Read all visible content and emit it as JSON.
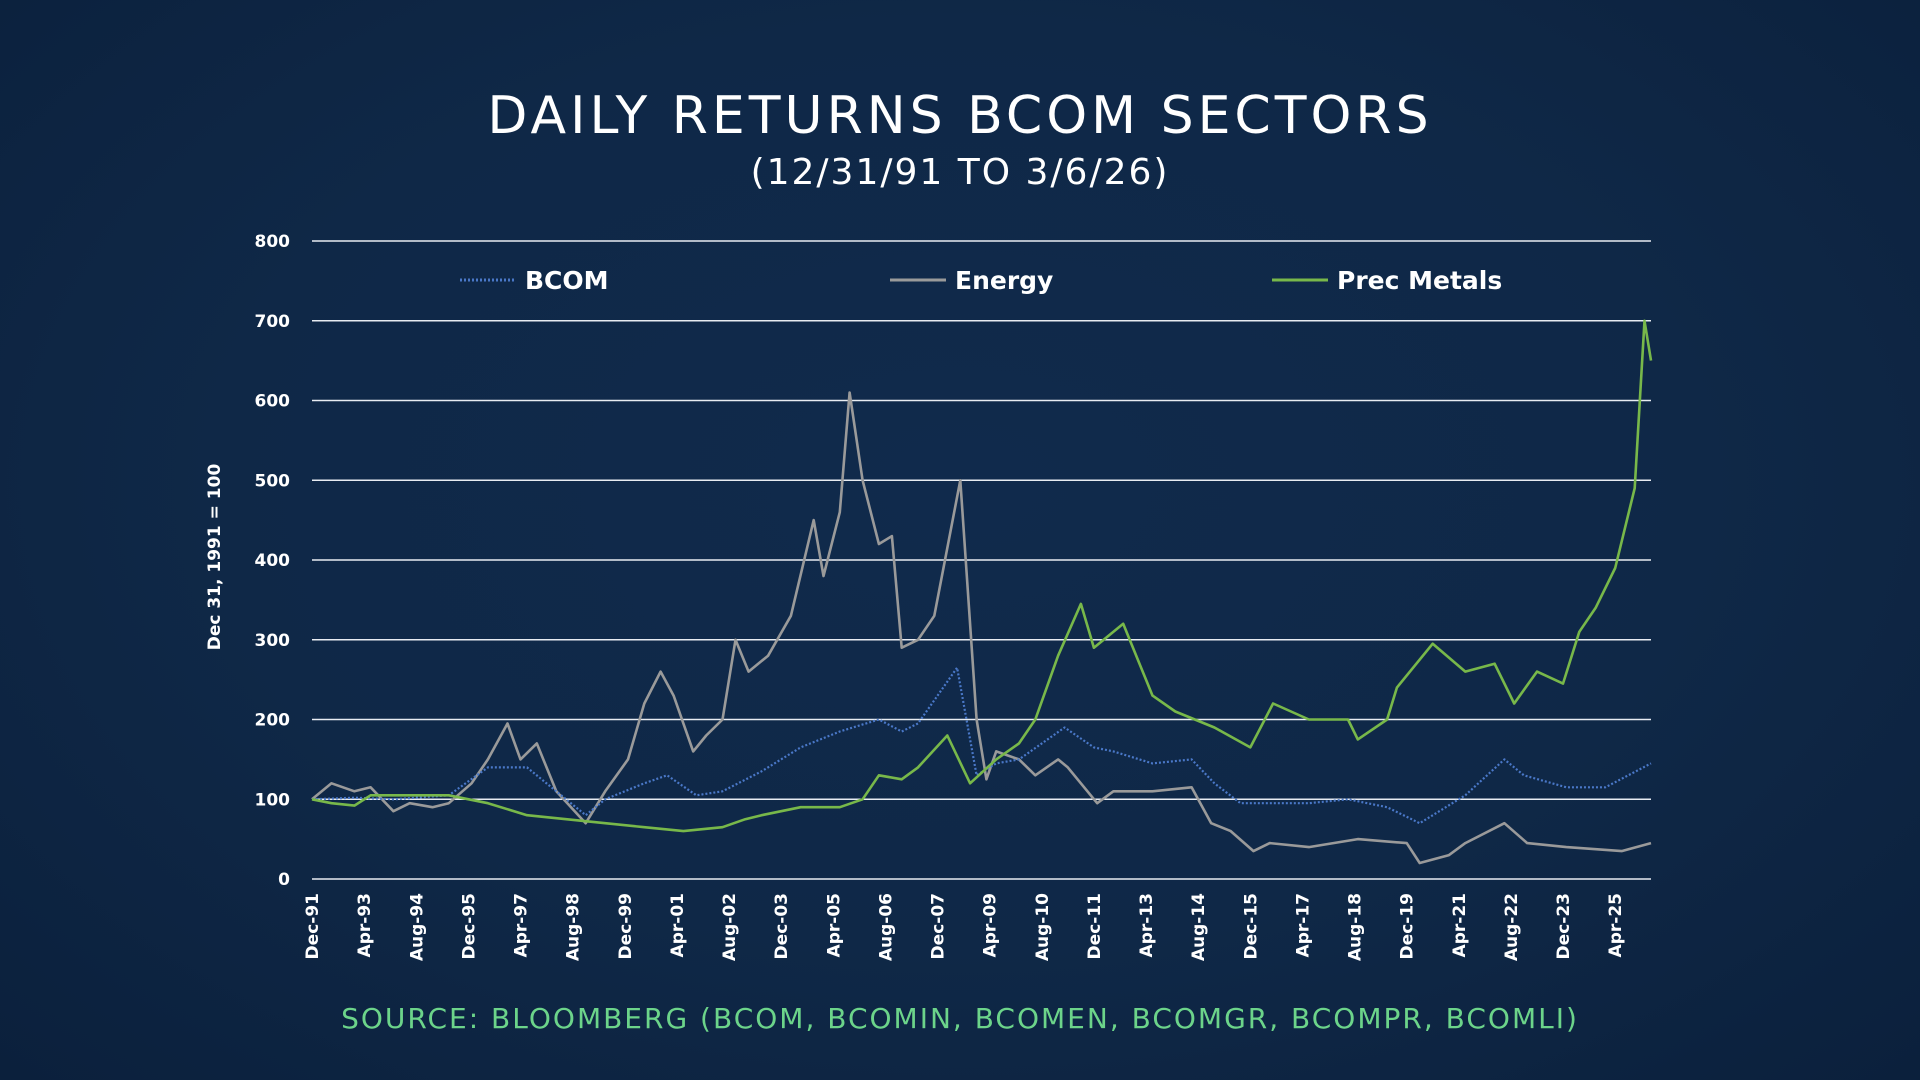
{
  "chart_data": {
    "type": "line",
    "title": "DAILY RETURNS BCOM SECTORS",
    "subtitle": "(12/31/91 TO 3/6/26)",
    "ylabel": "Dec 31, 1991 = 100",
    "xlabel": "",
    "ylim": [
      0,
      800
    ],
    "yticks": [
      0,
      100,
      200,
      300,
      400,
      500,
      600,
      700,
      800
    ],
    "xlim": [
      "1991-12",
      "2026-03"
    ],
    "xtick_labels": [
      "Dec-91",
      "Apr-93",
      "Aug-94",
      "Dec-95",
      "Apr-97",
      "Aug-98",
      "Dec-99",
      "Apr-01",
      "Aug-02",
      "Dec-03",
      "Apr-05",
      "Aug-06",
      "Dec-07",
      "Apr-09",
      "Aug-10",
      "Dec-11",
      "Apr-13",
      "Aug-14",
      "Dec-15",
      "Apr-17",
      "Aug-18",
      "Dec-19",
      "Apr-21",
      "Aug-22",
      "Dec-23",
      "Apr-25"
    ],
    "grid": "horizontal",
    "legend_position": "top",
    "series": [
      {
        "name": "BCOM",
        "color": "#4a78c8",
        "style": "dotted",
        "points": [
          [
            "1991-12",
            100
          ],
          [
            "1993-01",
            102
          ],
          [
            "1994-01",
            100
          ],
          [
            "1995-06",
            105
          ],
          [
            "1996-06",
            140
          ],
          [
            "1997-06",
            140
          ],
          [
            "1998-06",
            100
          ],
          [
            "1998-12",
            80
          ],
          [
            "1999-06",
            100
          ],
          [
            "2000-06",
            120
          ],
          [
            "2001-01",
            130
          ],
          [
            "2001-10",
            105
          ],
          [
            "2002-06",
            110
          ],
          [
            "2003-06",
            135
          ],
          [
            "2004-06",
            165
          ],
          [
            "2005-06",
            185
          ],
          [
            "2006-06",
            200
          ],
          [
            "2007-01",
            185
          ],
          [
            "2007-06",
            195
          ],
          [
            "2008-06",
            265
          ],
          [
            "2008-12",
            130
          ],
          [
            "2009-06",
            145
          ],
          [
            "2010-01",
            150
          ],
          [
            "2011-03",
            190
          ],
          [
            "2011-12",
            165
          ],
          [
            "2012-06",
            160
          ],
          [
            "2013-06",
            145
          ],
          [
            "2014-06",
            150
          ],
          [
            "2015-01",
            120
          ],
          [
            "2015-09",
            95
          ],
          [
            "2016-06",
            95
          ],
          [
            "2017-06",
            95
          ],
          [
            "2018-06",
            100
          ],
          [
            "2019-06",
            90
          ],
          [
            "2020-04",
            70
          ],
          [
            "2021-06",
            105
          ],
          [
            "2022-06",
            150
          ],
          [
            "2022-12",
            130
          ],
          [
            "2024-01",
            115
          ],
          [
            "2025-01",
            115
          ],
          [
            "2026-03",
            145
          ]
        ]
      },
      {
        "name": "Energy",
        "color": "#9a9a9a",
        "style": "solid",
        "points": [
          [
            "1991-12",
            100
          ],
          [
            "1992-06",
            120
          ],
          [
            "1993-01",
            110
          ],
          [
            "1993-06",
            115
          ],
          [
            "1994-01",
            85
          ],
          [
            "1994-06",
            95
          ],
          [
            "1995-01",
            90
          ],
          [
            "1995-06",
            95
          ],
          [
            "1996-01",
            120
          ],
          [
            "1996-06",
            150
          ],
          [
            "1996-12",
            195
          ],
          [
            "1997-04",
            150
          ],
          [
            "1997-09",
            170
          ],
          [
            "1998-03",
            110
          ],
          [
            "1998-12",
            70
          ],
          [
            "1999-06",
            110
          ],
          [
            "2000-01",
            150
          ],
          [
            "2000-06",
            220
          ],
          [
            "2000-11",
            260
          ],
          [
            "2001-03",
            230
          ],
          [
            "2001-09",
            160
          ],
          [
            "2002-01",
            180
          ],
          [
            "2002-06",
            200
          ],
          [
            "2002-10",
            300
          ],
          [
            "2003-02",
            260
          ],
          [
            "2003-08",
            280
          ],
          [
            "2004-03",
            330
          ],
          [
            "2004-10",
            450
          ],
          [
            "2005-01",
            380
          ],
          [
            "2005-06",
            460
          ],
          [
            "2005-09",
            610
          ],
          [
            "2006-01",
            500
          ],
          [
            "2006-06",
            420
          ],
          [
            "2006-10",
            430
          ],
          [
            "2007-01",
            290
          ],
          [
            "2007-06",
            300
          ],
          [
            "2007-11",
            330
          ],
          [
            "2008-07",
            500
          ],
          [
            "2008-12",
            200
          ],
          [
            "2009-03",
            125
          ],
          [
            "2009-06",
            160
          ],
          [
            "2010-01",
            150
          ],
          [
            "2010-06",
            130
          ],
          [
            "2011-01",
            150
          ],
          [
            "2011-04",
            140
          ],
          [
            "2012-01",
            95
          ],
          [
            "2012-06",
            110
          ],
          [
            "2013-06",
            110
          ],
          [
            "2014-06",
            115
          ],
          [
            "2014-12",
            70
          ],
          [
            "2015-06",
            60
          ],
          [
            "2016-01",
            35
          ],
          [
            "2016-06",
            45
          ],
          [
            "2017-06",
            40
          ],
          [
            "2018-09",
            50
          ],
          [
            "2019-12",
            45
          ],
          [
            "2020-04",
            20
          ],
          [
            "2021-01",
            30
          ],
          [
            "2021-06",
            45
          ],
          [
            "2022-06",
            70
          ],
          [
            "2023-01",
            45
          ],
          [
            "2024-01",
            40
          ],
          [
            "2025-06",
            35
          ],
          [
            "2026-03",
            45
          ]
        ]
      },
      {
        "name": "Prec Metals",
        "color": "#78b84a",
        "style": "solid",
        "points": [
          [
            "1991-12",
            100
          ],
          [
            "1992-06",
            95
          ],
          [
            "1993-01",
            92
          ],
          [
            "1993-06",
            105
          ],
          [
            "1994-06",
            105
          ],
          [
            "1995-06",
            105
          ],
          [
            "1996-06",
            95
          ],
          [
            "1997-06",
            80
          ],
          [
            "1998-06",
            75
          ],
          [
            "1999-06",
            70
          ],
          [
            "2000-06",
            65
          ],
          [
            "2001-06",
            60
          ],
          [
            "2002-06",
            65
          ],
          [
            "2003-01",
            75
          ],
          [
            "2003-06",
            80
          ],
          [
            "2004-06",
            90
          ],
          [
            "2005-06",
            90
          ],
          [
            "2006-01",
            100
          ],
          [
            "2006-06",
            130
          ],
          [
            "2007-01",
            125
          ],
          [
            "2007-06",
            140
          ],
          [
            "2008-03",
            180
          ],
          [
            "2008-10",
            120
          ],
          [
            "2009-06",
            150
          ],
          [
            "2010-01",
            170
          ],
          [
            "2010-06",
            200
          ],
          [
            "2011-01",
            280
          ],
          [
            "2011-08",
            345
          ],
          [
            "2011-12",
            290
          ],
          [
            "2012-09",
            320
          ],
          [
            "2013-06",
            230
          ],
          [
            "2014-01",
            210
          ],
          [
            "2015-01",
            190
          ],
          [
            "2015-12",
            165
          ],
          [
            "2016-07",
            220
          ],
          [
            "2017-06",
            200
          ],
          [
            "2018-06",
            200
          ],
          [
            "2018-09",
            175
          ],
          [
            "2019-06",
            200
          ],
          [
            "2019-09",
            240
          ],
          [
            "2020-08",
            295
          ],
          [
            "2021-06",
            260
          ],
          [
            "2022-03",
            270
          ],
          [
            "2022-09",
            220
          ],
          [
            "2023-04",
            260
          ],
          [
            "2023-12",
            245
          ],
          [
            "2024-05",
            310
          ],
          [
            "2024-10",
            340
          ],
          [
            "2025-04",
            390
          ],
          [
            "2025-10",
            490
          ],
          [
            "2026-01",
            700
          ],
          [
            "2026-03",
            650
          ]
        ]
      }
    ],
    "source": "SOURCE: BLOOMBERG (BCOM, BCOMIN, BCOMEN, BCOMGR, BCOMPR, BCOMLI)"
  }
}
